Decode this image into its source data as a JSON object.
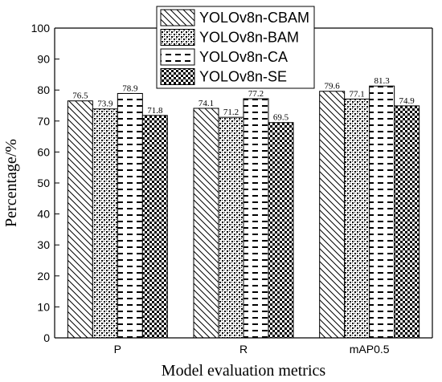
{
  "chart_data": {
    "type": "bar",
    "categories": [
      "P",
      "R",
      "mAP0.5"
    ],
    "series": [
      {
        "name": "YOLOv8n-CBAM",
        "values": [
          76.5,
          74.1,
          79.6
        ],
        "pattern": "diagonal"
      },
      {
        "name": "YOLOv8n-BAM",
        "values": [
          73.9,
          71.2,
          77.1
        ],
        "pattern": "dots"
      },
      {
        "name": "YOLOv8n-CA",
        "values": [
          78.9,
          77.2,
          81.3
        ],
        "pattern": "dashes"
      },
      {
        "name": "YOLOv8n-SE",
        "values": [
          71.8,
          69.5,
          74.9
        ],
        "pattern": "checker"
      }
    ],
    "data_labels": [
      [
        "76.5",
        "74.1",
        "79.6"
      ],
      [
        "73.9",
        "71.2",
        "77.1"
      ],
      [
        "78.9",
        "77.2",
        "81.3"
      ],
      [
        "71.8",
        "69.5",
        "74.9"
      ]
    ],
    "xlabel": "Model evaluation metrics",
    "ylabel": "Percentage/%",
    "ylim": [
      0,
      100
    ],
    "yticks": [
      "0",
      "10",
      "20",
      "30",
      "40",
      "50",
      "60",
      "70",
      "80",
      "90",
      "100"
    ],
    "grid": false,
    "legend_position": "top-center"
  }
}
